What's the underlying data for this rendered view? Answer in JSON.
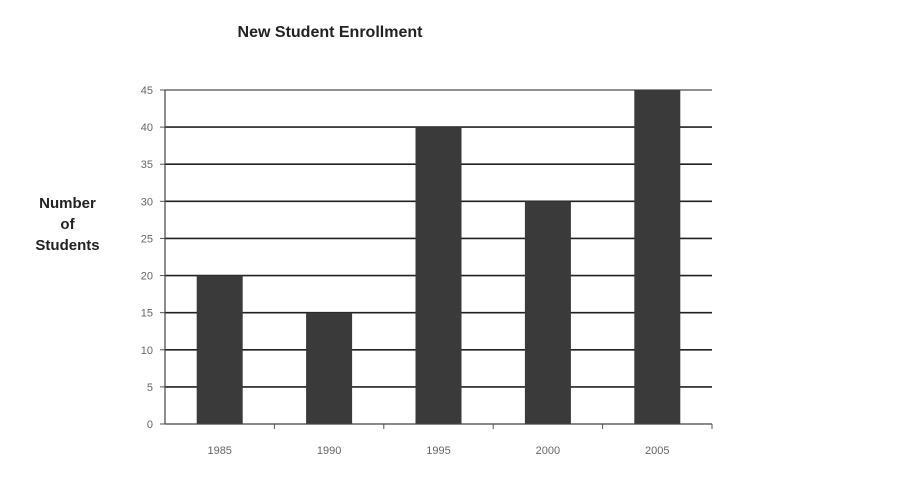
{
  "chart_data": {
    "type": "bar",
    "title": "New Student Enrollment",
    "ylabel_lines": [
      "Number",
      "of",
      "Students"
    ],
    "xlabel": "",
    "categories": [
      "1985",
      "1990",
      "1995",
      "2000",
      "2005"
    ],
    "values": [
      20,
      15,
      40,
      30,
      45
    ],
    "ylim": [
      0,
      45
    ],
    "yticks": [
      0,
      5,
      10,
      15,
      20,
      25,
      30,
      35,
      40,
      45
    ],
    "grid": true,
    "legend": "none",
    "bar_color": "#3a3a3a",
    "grid_color": "#222222"
  }
}
